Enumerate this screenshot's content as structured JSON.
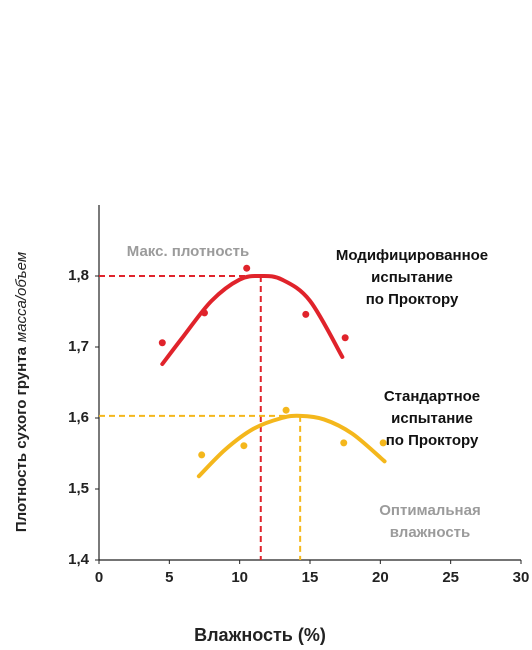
{
  "chart_data": {
    "type": "scatter",
    "xlabel": "Влажность (%)",
    "ylabel": "Плотность сухого грунта",
    "ylabel_unit": "масса/объем",
    "xlim": [
      0,
      30
    ],
    "ylim": [
      1.4,
      1.9
    ],
    "xticks": [
      0,
      5,
      10,
      15,
      20,
      25,
      30
    ],
    "yticks": [
      {
        "value": 1.4,
        "label": "1,4"
      },
      {
        "value": 1.5,
        "label": "1,5"
      },
      {
        "value": 1.6,
        "label": "1,6"
      },
      {
        "value": 1.7,
        "label": "1,7"
      },
      {
        "value": 1.8,
        "label": "1,8"
      }
    ],
    "series": [
      {
        "label_lines": [
          "Модифицированное",
          "испытание",
          "по Проктору"
        ],
        "color": "#e0232b",
        "x": [
          4.5,
          7.5,
          10.5,
          14.7,
          17.5
        ],
        "values": [
          1.706,
          1.748,
          1.811,
          1.746,
          1.713
        ],
        "fit_x": [
          4.5,
          6,
          8,
          10,
          11.5,
          13,
          15,
          17.3
        ],
        "fit_values": [
          1.676,
          1.715,
          1.765,
          1.795,
          1.8,
          1.795,
          1.765,
          1.686
        ],
        "optimum_x": 11.5,
        "optimum_y": 1.8
      },
      {
        "label_lines": [
          "Стандартное",
          "испытание",
          "по Проктору"
        ],
        "color": "#f4b71c",
        "x": [
          7.3,
          10.3,
          13.3,
          17.4,
          20.2
        ],
        "values": [
          1.548,
          1.561,
          1.611,
          1.565,
          1.565
        ],
        "fit_x": [
          7.1,
          9,
          11,
          13,
          14.3,
          16,
          18,
          20.3
        ],
        "fit_values": [
          1.518,
          1.556,
          1.585,
          1.6,
          1.603,
          1.598,
          1.578,
          1.539
        ],
        "optimum_x": 14.3,
        "optimum_y": 1.603
      }
    ],
    "annotations": {
      "max_density": "Макс. плотность",
      "optimum_moisture": [
        "Оптимальная",
        "влажность"
      ]
    }
  }
}
